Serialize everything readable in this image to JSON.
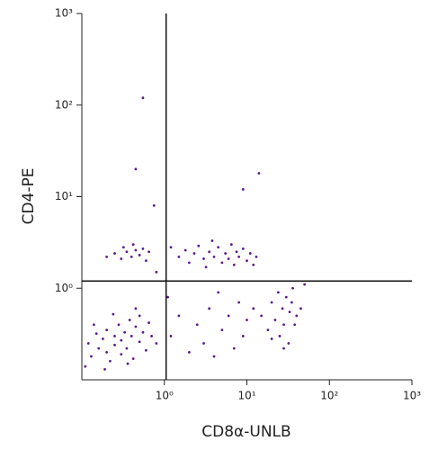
{
  "chart_data": {
    "type": "scatter",
    "x_label": "CD8α-UNLB",
    "y_label": "CD4-PE",
    "log_x": true,
    "log_y": true,
    "xlim": [
      0.1,
      1000
    ],
    "ylim": [
      0.1,
      1000
    ],
    "xticks": [
      {
        "value": 1,
        "label": "10⁰"
      },
      {
        "value": 10,
        "label": "10¹"
      },
      {
        "value": 100,
        "label": "10²"
      },
      {
        "value": 1000,
        "label": "10³"
      }
    ],
    "yticks": [
      {
        "value": 1,
        "label": "10⁰"
      },
      {
        "value": 10,
        "label": "10¹"
      },
      {
        "value": 100,
        "label": "10²"
      },
      {
        "value": 1000,
        "label": "10³"
      }
    ],
    "quadrant_x": 1.05,
    "quadrant_y": 1.2,
    "color": "#5b1a8c",
    "x": [
      0.12,
      0.13,
      0.15,
      0.16,
      0.18,
      0.2,
      0.2,
      0.22,
      0.25,
      0.25,
      0.28,
      0.3,
      0.3,
      0.33,
      0.35,
      0.38,
      0.4,
      0.42,
      0.45,
      0.5,
      0.5,
      0.55,
      0.6,
      0.65,
      0.7,
      0.14,
      0.11,
      0.19,
      0.36,
      0.8,
      0.24,
      0.45,
      0.25,
      0.3,
      0.32,
      0.35,
      0.4,
      0.42,
      0.45,
      0.5,
      0.55,
      0.6,
      0.2,
      0.65,
      1.5,
      1.8,
      2,
      2.3,
      2.6,
      3,
      3.2,
      3.5,
      4,
      4.5,
      5,
      5.5,
      6,
      6.5,
      7,
      7.5,
      8,
      9,
      10,
      11,
      12,
      13,
      1.2,
      3.8,
      15,
      18,
      20,
      22,
      24,
      25,
      27,
      28,
      30,
      32,
      33,
      35,
      38,
      40,
      45,
      28,
      20,
      36,
      1.2,
      1.5,
      2,
      2.5,
      3,
      3.5,
      4,
      5,
      6,
      7,
      8,
      9,
      10,
      12,
      1.1,
      4.5,
      0.55,
      0.45,
      0.75,
      9,
      14,
      0.8,
      50
    ],
    "values": [
      0.25,
      0.18,
      0.32,
      0.22,
      0.28,
      0.35,
      0.2,
      0.16,
      0.3,
      0.24,
      0.4,
      0.27,
      0.19,
      0.33,
      0.22,
      0.45,
      0.3,
      0.17,
      0.38,
      0.26,
      0.5,
      0.33,
      0.21,
      0.42,
      0.3,
      0.4,
      0.14,
      0.13,
      0.15,
      0.25,
      0.52,
      0.6,
      2.4,
      2.1,
      2.8,
      2.5,
      2.2,
      3,
      2.6,
      2.3,
      2.7,
      2,
      2.2,
      2.5,
      2.2,
      2.6,
      1.9,
      2.4,
      2.9,
      2.1,
      1.7,
      2.5,
      2.2,
      2.8,
      1.9,
      2.4,
      2.1,
      3,
      1.8,
      2.5,
      2.2,
      2.7,
      2,
      2.4,
      1.8,
      2.2,
      2.8,
      3.3,
      0.5,
      0.35,
      0.7,
      0.45,
      0.9,
      0.3,
      0.6,
      0.4,
      0.8,
      0.25,
      0.55,
      0.7,
      0.4,
      0.5,
      0.6,
      0.22,
      0.28,
      1,
      0.3,
      0.5,
      0.2,
      0.4,
      0.25,
      0.6,
      0.18,
      0.35,
      0.5,
      0.22,
      0.7,
      0.3,
      0.45,
      0.6,
      0.8,
      0.9,
      120,
      20,
      8,
      12,
      18,
      1.5,
      1.1
    ]
  }
}
